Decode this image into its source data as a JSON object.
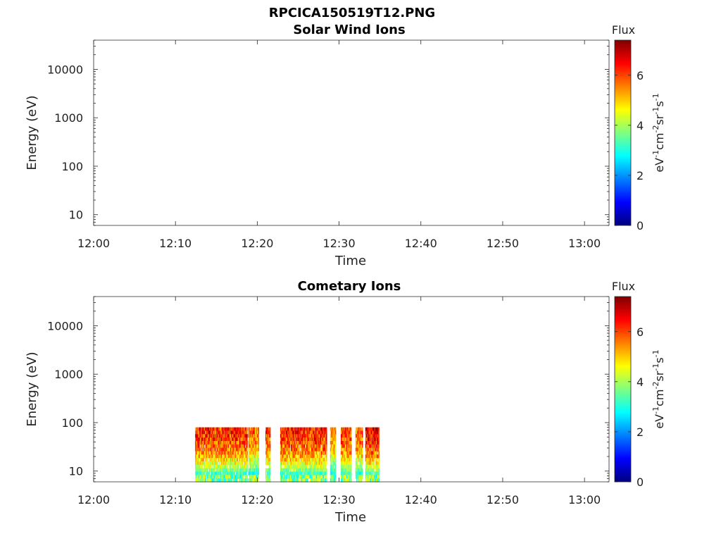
{
  "page_title": "RPCICA150519T12.PNG",
  "chart_data": [
    {
      "type": "heatmap",
      "title": "Solar Wind Ions",
      "xlabel": "Time",
      "ylabel": "Energy (eV)",
      "x_tick_labels": [
        "12:00",
        "12:10",
        "12:20",
        "12:30",
        "12:40",
        "12:50",
        "13:00"
      ],
      "x_range_minutes": [
        0,
        63
      ],
      "y_scale": "log",
      "y_tick_labels": [
        "10",
        "100",
        "1000",
        "10000"
      ],
      "y_range": [
        6,
        40000
      ],
      "colorbar": {
        "title": "Flux",
        "label": "eV-1cm-2sr-1s-1",
        "range": [
          0,
          7.4
        ],
        "tick_labels": [
          "0",
          "2",
          "4",
          "6"
        ],
        "colormap": "jet"
      },
      "data_segments": []
    },
    {
      "type": "heatmap",
      "title": "Cometary Ions",
      "xlabel": "Time",
      "ylabel": "Energy (eV)",
      "x_tick_labels": [
        "12:00",
        "12:10",
        "12:20",
        "12:30",
        "12:40",
        "12:50",
        "13:00"
      ],
      "x_range_minutes": [
        0,
        63
      ],
      "y_scale": "log",
      "y_tick_labels": [
        "10",
        "100",
        "1000",
        "10000"
      ],
      "y_range": [
        6,
        40000
      ],
      "colorbar": {
        "title": "Flux",
        "label": "eV-1cm-2sr-1s-1",
        "range": [
          0,
          7.4
        ],
        "tick_labels": [
          "0",
          "2",
          "4",
          "6"
        ],
        "colormap": "jet"
      },
      "energy_range_of_signal": [
        6,
        80
      ],
      "data_segments": [
        {
          "start": "12:12.4",
          "end": "12:18.8",
          "peak_flux": 6.6
        },
        {
          "start": "12:18.9",
          "end": "12:20.2",
          "peak_flux": 6.0
        },
        {
          "start": "12:21.0",
          "end": "12:21.6",
          "peak_flux": 6.3
        },
        {
          "start": "12:22.8",
          "end": "12:28.5",
          "peak_flux": 6.7
        },
        {
          "start": "12:28.9",
          "end": "12:29.6",
          "peak_flux": 5.8
        },
        {
          "start": "12:30.2",
          "end": "12:31.5",
          "peak_flux": 6.5
        },
        {
          "start": "12:32.0",
          "end": "12:32.9",
          "peak_flux": 6.2
        },
        {
          "start": "12:33.2",
          "end": "12:34.9",
          "peak_flux": 7.0
        }
      ]
    }
  ]
}
